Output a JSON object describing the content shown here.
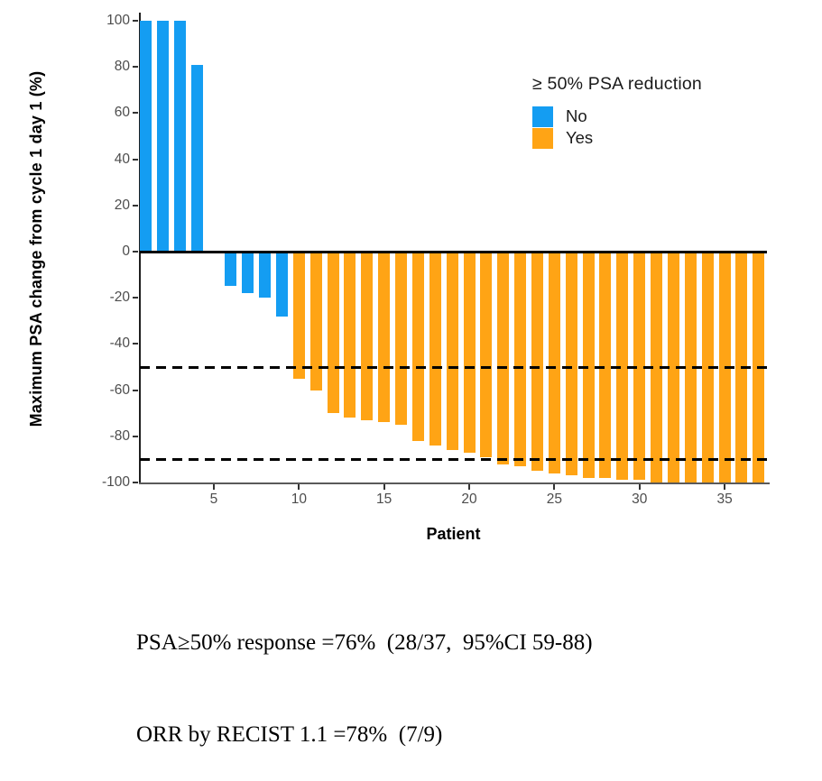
{
  "chart_data": {
    "type": "bar",
    "title": "",
    "xlabel": "Patient",
    "ylabel": "Maximum PSA change from cycle 1 day 1 (%)",
    "ylim": [
      -100,
      100
    ],
    "yticks": [
      100,
      80,
      60,
      40,
      20,
      0,
      -20,
      -40,
      -60,
      -80,
      -100
    ],
    "xticks": [
      5,
      10,
      15,
      20,
      25,
      30,
      35
    ],
    "grid": "off",
    "zero_line": {
      "value": 0,
      "color": "#000000",
      "style": "solid"
    },
    "reference_lines": [
      {
        "value": -50,
        "color": "#000000",
        "style": "dashed"
      },
      {
        "value": -90,
        "color": "#000000",
        "style": "dashed"
      }
    ],
    "legend": {
      "title": "≥ 50% PSA reduction",
      "position": "top-right-inside",
      "entries": [
        {
          "label": "No",
          "color": "#149DF2"
        },
        {
          "label": "Yes",
          "color": "#FFA415"
        }
      ]
    },
    "x": [
      1,
      2,
      3,
      4,
      5,
      6,
      7,
      8,
      9,
      10,
      11,
      12,
      13,
      14,
      15,
      16,
      17,
      18,
      19,
      20,
      21,
      22,
      23,
      24,
      25,
      26,
      27,
      28,
      29,
      30,
      31,
      32,
      33,
      34,
      35,
      36,
      37
    ],
    "values": [
      100,
      100,
      100,
      81,
      0,
      -15,
      -18,
      -20,
      -28,
      -55,
      -60,
      -70,
      -72,
      -73,
      -74,
      -75,
      -82,
      -84,
      -86,
      -87,
      -89,
      -92,
      -93,
      -95,
      -96,
      -97,
      -98,
      -98,
      -99,
      -99,
      -100,
      -100,
      -100,
      -100,
      -100,
      -100,
      -100
    ],
    "groups": [
      "No",
      "No",
      "No",
      "No",
      "No",
      "No",
      "No",
      "No",
      "No",
      "Yes",
      "Yes",
      "Yes",
      "Yes",
      "Yes",
      "Yes",
      "Yes",
      "Yes",
      "Yes",
      "Yes",
      "Yes",
      "Yes",
      "Yes",
      "Yes",
      "Yes",
      "Yes",
      "Yes",
      "Yes",
      "Yes",
      "Yes",
      "Yes",
      "Yes",
      "Yes",
      "Yes",
      "Yes",
      "Yes",
      "Yes",
      "Yes"
    ]
  },
  "caption": {
    "line1": "PSA≥50% response =76%  (28/37,  95%CI 59-88)",
    "line2": "ORR by RECIST 1.1 =78%  (7/9)"
  },
  "colors": {
    "axis_text": "#4d4d4d",
    "axis_line": "#1f1f1f",
    "bottom_axis_line": "#595959",
    "background": "#ffffff"
  }
}
